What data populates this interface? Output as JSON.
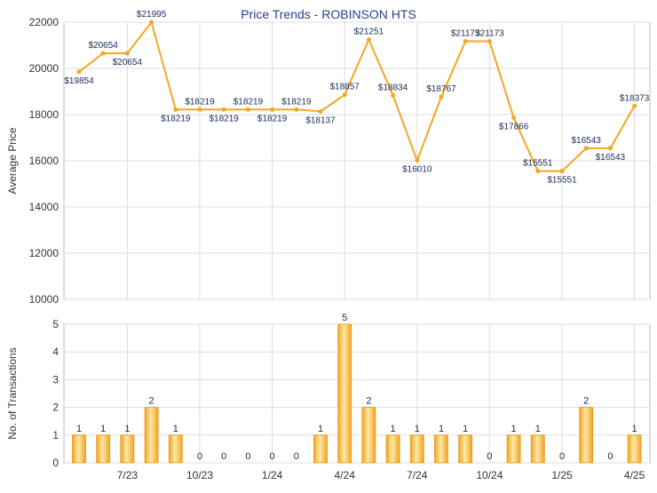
{
  "chart_data": [
    {
      "type": "line",
      "title": "Price Trends - ROBINSON HTS",
      "xlabel": "",
      "ylabel": "Average Price",
      "ylim": [
        10000,
        22000
      ],
      "y_ticks": [
        10000,
        12000,
        14000,
        16000,
        18000,
        20000,
        22000
      ],
      "grid": true,
      "color": "#f5a623",
      "x": [
        "2023-05",
        "2023-06",
        "2023-07",
        "2023-08",
        "2023-09",
        "2023-10",
        "2023-11",
        "2023-12",
        "2024-01",
        "2024-02",
        "2024-03",
        "2024-04",
        "2024-05",
        "2024-06",
        "2024-07",
        "2024-08",
        "2024-09",
        "2024-10",
        "2024-11",
        "2024-12",
        "2025-01",
        "2025-02",
        "2025-03",
        "2025-04"
      ],
      "values": [
        19854,
        20654,
        20654,
        21995,
        18219,
        18219,
        18219,
        18219,
        18219,
        18219,
        18137,
        18857,
        21251,
        18834,
        16010,
        18767,
        21173,
        21173,
        17866,
        15551,
        15551,
        16543,
        16543,
        18373
      ],
      "labels": [
        "$19854",
        "$20654",
        "$20654",
        "$21995",
        "$18219",
        "$18219",
        "$18219",
        "$18219",
        "$18219",
        "$18219",
        "$18137",
        "$18857",
        "$21251",
        "$18834",
        "$16010",
        "$18767",
        "$21173",
        "$21173",
        "$17866",
        "$15551",
        "$15551",
        "$16543",
        "$16543",
        "$18373"
      ]
    },
    {
      "type": "bar",
      "title": "",
      "xlabel": "",
      "ylabel": "No. of Transactions",
      "ylim": [
        0,
        5
      ],
      "y_ticks": [
        0,
        1,
        2,
        3,
        4,
        5
      ],
      "grid": true,
      "color": "#f5a623",
      "categories": [
        "2023-05",
        "2023-06",
        "2023-07",
        "2023-08",
        "2023-09",
        "2023-10",
        "2023-11",
        "2023-12",
        "2024-01",
        "2024-02",
        "2024-03",
        "2024-04",
        "2024-05",
        "2024-06",
        "2024-07",
        "2024-08",
        "2024-09",
        "2024-10",
        "2024-11",
        "2024-12",
        "2025-01",
        "2025-02",
        "2025-03",
        "2025-04"
      ],
      "values": [
        1,
        1,
        1,
        2,
        1,
        0,
        0,
        0,
        0,
        0,
        1,
        5,
        2,
        1,
        1,
        1,
        1,
        0,
        1,
        1,
        0,
        2,
        0,
        1
      ],
      "x_tick_labels": [
        "7/23",
        "10/23",
        "1/24",
        "4/24",
        "7/24",
        "10/24",
        "1/25",
        "4/25"
      ]
    }
  ]
}
